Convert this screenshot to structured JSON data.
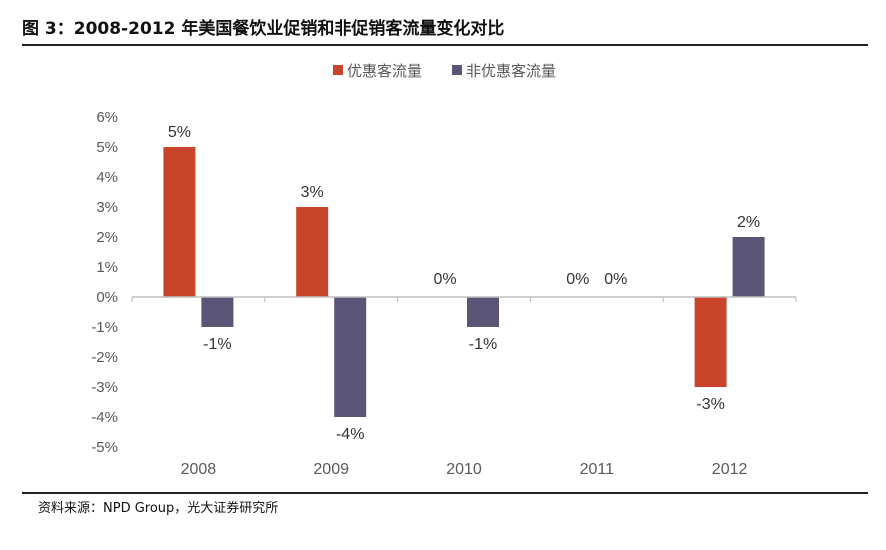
{
  "figure": {
    "title": "图 3：2008-2012 年美国餐饮业促销和非促销客流量变化对比",
    "source": "资料来源：NPD Group，光大证券研究所"
  },
  "colors": {
    "promo": "#C8442A",
    "non_promo": "#5B5577",
    "axis": "#BFBFBF",
    "text": "#595959"
  },
  "chart_data": {
    "type": "bar",
    "title": "",
    "xlabel": "",
    "ylabel": "",
    "categories": [
      "2008",
      "2009",
      "2010",
      "2011",
      "2012"
    ],
    "series": [
      {
        "name": "优惠客流量",
        "values": [
          5,
          3,
          0,
          0,
          -3
        ],
        "labels": [
          "5%",
          "3%",
          "0%",
          "0%",
          "-3%"
        ]
      },
      {
        "name": "非优惠客流量",
        "values": [
          -1,
          -4,
          -1,
          0,
          2
        ],
        "labels": [
          "-1%",
          "-4%",
          "-1%",
          "0%",
          "2%"
        ]
      }
    ],
    "ylim": [
      -5,
      6
    ],
    "yticks": [
      "6%",
      "5%",
      "4%",
      "3%",
      "2%",
      "1%",
      "0%",
      "-1%",
      "-2%",
      "-3%",
      "-4%",
      "-5%"
    ],
    "unit": "%",
    "grid": false,
    "legend_position": "top-center"
  }
}
